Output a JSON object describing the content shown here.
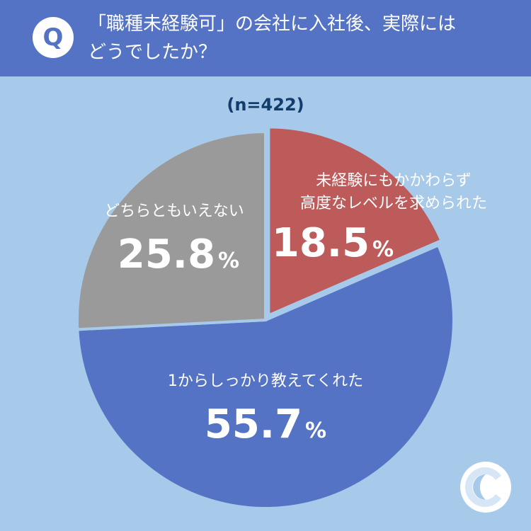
{
  "header": {
    "badge": "Q",
    "question": "「職種未経験可」の会社に入社後、実際には\nどうでしたか？"
  },
  "sample_size": "(n=422)",
  "colors": {
    "background": "#a7c9ea",
    "header": "#5573c4",
    "slice_red": "#bd5a5a",
    "slice_blue": "#5573c4",
    "slice_gray": "#9a9a9a"
  },
  "chart_data": {
    "type": "pie",
    "slices": [
      {
        "label_lines": [
          "未経験にもかかわらず",
          "高度なレベルを求められた"
        ],
        "value": 18.5,
        "display": "18.5",
        "color": "#bd5a5a"
      },
      {
        "label_lines": [
          "1からしっかり教えてくれた"
        ],
        "value": 55.7,
        "display": "55.7",
        "color": "#5573c4"
      },
      {
        "label_lines": [
          "どちらともいえない"
        ],
        "value": 25.8,
        "display": "25.8",
        "color": "#9a9a9a"
      }
    ],
    "unit": "%"
  }
}
